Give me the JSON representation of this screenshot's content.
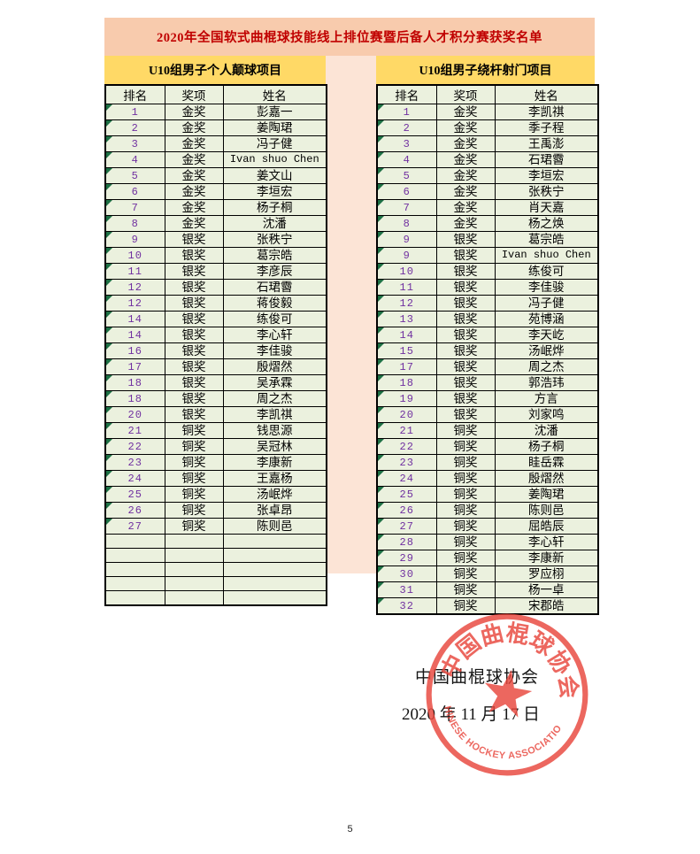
{
  "title": "2020年全国软式曲棍球技能线上排位赛暨后备人才积分赛获奖名单",
  "page_number": "5",
  "colors": {
    "banner_peach": "#f8cbad",
    "subheader_yellow": "#ffd966",
    "cell_green": "#ebf1de",
    "gap_pink": "#fce4d6",
    "title_red": "#c00000",
    "rank_purple": "#7030a0",
    "triangle_green": "#1e7145",
    "seal_red": "#e8463c"
  },
  "tables": [
    {
      "header": "U10组男子个人颠球项目",
      "columns": [
        "排名",
        "奖项",
        "姓名"
      ],
      "rows": [
        [
          "1",
          "金奖",
          "彭嘉一"
        ],
        [
          "2",
          "金奖",
          "姜陶珺"
        ],
        [
          "3",
          "金奖",
          "冯子健"
        ],
        [
          "4",
          "金奖",
          "Ivan shuo Chen"
        ],
        [
          "5",
          "金奖",
          "姜文山"
        ],
        [
          "6",
          "金奖",
          "李垣宏"
        ],
        [
          "7",
          "金奖",
          "杨子桐"
        ],
        [
          "8",
          "金奖",
          "沈潘"
        ],
        [
          "9",
          "银奖",
          "张秩宁"
        ],
        [
          "10",
          "银奖",
          "葛宗皓"
        ],
        [
          "11",
          "银奖",
          "李彦辰"
        ],
        [
          "12",
          "银奖",
          "石珺霫"
        ],
        [
          "12",
          "银奖",
          "蒋俊毅"
        ],
        [
          "14",
          "银奖",
          "练俊可"
        ],
        [
          "14",
          "银奖",
          "李心轩"
        ],
        [
          "16",
          "银奖",
          "李佳骏"
        ],
        [
          "17",
          "银奖",
          "殷熠然"
        ],
        [
          "18",
          "银奖",
          "吴承霖"
        ],
        [
          "18",
          "银奖",
          "周之杰"
        ],
        [
          "20",
          "银奖",
          "李凯祺"
        ],
        [
          "21",
          "铜奖",
          "钱思源"
        ],
        [
          "22",
          "铜奖",
          "吴冠林"
        ],
        [
          "23",
          "铜奖",
          "李康新"
        ],
        [
          "24",
          "铜奖",
          "王嘉杨"
        ],
        [
          "25",
          "铜奖",
          "汤岷烨"
        ],
        [
          "26",
          "铜奖",
          "张卓昂"
        ],
        [
          "27",
          "铜奖",
          "陈则邑"
        ],
        [
          "",
          "",
          ""
        ],
        [
          "",
          "",
          ""
        ],
        [
          "",
          "",
          ""
        ],
        [
          "",
          "",
          ""
        ],
        [
          "",
          "",
          ""
        ]
      ]
    },
    {
      "header": "U10组男子绕杆射门项目",
      "columns": [
        "排名",
        "奖项",
        "姓名"
      ],
      "rows": [
        [
          "1",
          "金奖",
          "李凯祺"
        ],
        [
          "2",
          "金奖",
          "季子程"
        ],
        [
          "3",
          "金奖",
          "王禹澎"
        ],
        [
          "4",
          "金奖",
          "石珺霫"
        ],
        [
          "5",
          "金奖",
          "李垣宏"
        ],
        [
          "6",
          "金奖",
          "张秩宁"
        ],
        [
          "7",
          "金奖",
          "肖天嘉"
        ],
        [
          "8",
          "金奖",
          "杨之焕"
        ],
        [
          "9",
          "银奖",
          "葛宗皓"
        ],
        [
          "9",
          "银奖",
          "Ivan shuo Chen"
        ],
        [
          "10",
          "银奖",
          "练俊可"
        ],
        [
          "11",
          "银奖",
          "李佳骏"
        ],
        [
          "12",
          "银奖",
          "冯子健"
        ],
        [
          "13",
          "银奖",
          "苑博涵"
        ],
        [
          "14",
          "银奖",
          "李天屹"
        ],
        [
          "15",
          "银奖",
          "汤岷烨"
        ],
        [
          "17",
          "银奖",
          "周之杰"
        ],
        [
          "18",
          "银奖",
          "郭浩玮"
        ],
        [
          "19",
          "银奖",
          "方言"
        ],
        [
          "20",
          "银奖",
          "刘家鸣"
        ],
        [
          "21",
          "铜奖",
          "沈潘"
        ],
        [
          "22",
          "铜奖",
          "杨子桐"
        ],
        [
          "23",
          "铜奖",
          "眭岳霖"
        ],
        [
          "24",
          "铜奖",
          "殷熠然"
        ],
        [
          "25",
          "铜奖",
          "姜陶珺"
        ],
        [
          "26",
          "铜奖",
          "陈则邑"
        ],
        [
          "27",
          "铜奖",
          "屈皓辰"
        ],
        [
          "28",
          "铜奖",
          "李心轩"
        ],
        [
          "29",
          "铜奖",
          "李康新"
        ],
        [
          "30",
          "铜奖",
          "罗应栩"
        ],
        [
          "31",
          "铜奖",
          "杨一卓"
        ],
        [
          "32",
          "铜奖",
          "宋郡皓"
        ]
      ]
    }
  ],
  "stamp": {
    "org_black_text": "中国曲棍球协会",
    "date_black_text": "2020 年 11 月 17 日",
    "seal_top_text": "中国曲棍球协会",
    "seal_bottom_text": "CHINESE HOCKEY ASSOCIATION"
  }
}
